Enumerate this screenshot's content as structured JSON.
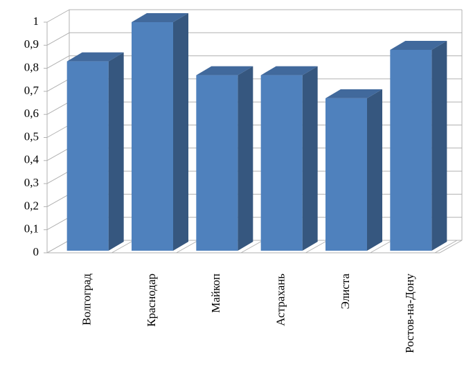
{
  "chart_data": {
    "type": "bar3d",
    "categories": [
      "Волгоград",
      "Краснодар",
      "Майкоп",
      "Астрахань",
      "Элиста",
      "Ростов-на-Дону"
    ],
    "values": [
      0.83,
      1.0,
      0.77,
      0.77,
      0.67,
      0.88
    ],
    "color": "#4f81bd",
    "ylim": [
      0,
      1
    ],
    "yticks": [
      0,
      {
        "value": 0.1,
        "label": "0,1"
      },
      {
        "value": 0.2,
        "label": "0,2"
      },
      {
        "value": 0.3,
        "label": "0,3"
      },
      {
        "value": 0.4,
        "label": "0,4"
      },
      {
        "value": 0.5,
        "label": "0,5"
      },
      {
        "value": 0.6,
        "label": "0,6"
      },
      {
        "value": 0.7,
        "label": "0,7"
      },
      {
        "value": 0.8,
        "label": "0,8"
      },
      {
        "value": 0.9,
        "label": "0,9"
      },
      1
    ],
    "grid": true
  }
}
